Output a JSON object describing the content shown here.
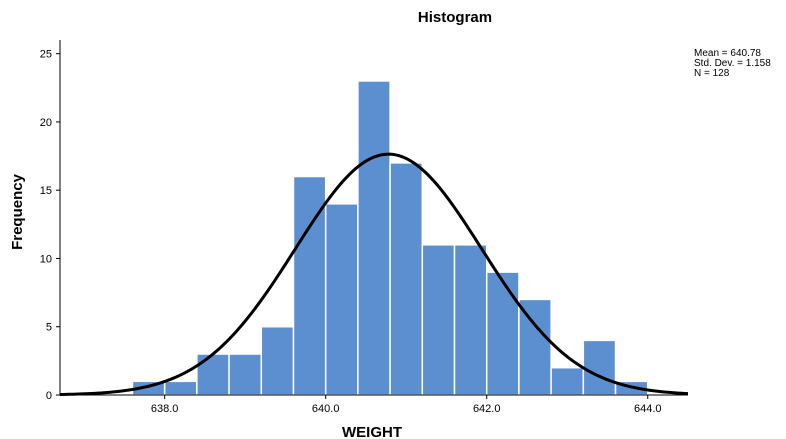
{
  "chart_data": {
    "type": "bar",
    "subtype": "histogram",
    "title": "Histogram",
    "xlabel": "WEIGHT",
    "ylabel": "Frequency",
    "xlim": [
      636.7,
      644.5
    ],
    "ylim": [
      0,
      26
    ],
    "bin_width": 0.4,
    "bins": [
      {
        "start": 637.6,
        "end": 638.0,
        "count": 1
      },
      {
        "start": 638.0,
        "end": 638.4,
        "count": 1
      },
      {
        "start": 638.4,
        "end": 638.8,
        "count": 3
      },
      {
        "start": 638.8,
        "end": 639.2,
        "count": 3
      },
      {
        "start": 639.2,
        "end": 639.6,
        "count": 5
      },
      {
        "start": 639.6,
        "end": 640.0,
        "count": 16
      },
      {
        "start": 640.0,
        "end": 640.4,
        "count": 14
      },
      {
        "start": 640.4,
        "end": 640.8,
        "count": 23
      },
      {
        "start": 640.8,
        "end": 641.2,
        "count": 17
      },
      {
        "start": 641.2,
        "end": 641.6,
        "count": 11
      },
      {
        "start": 641.6,
        "end": 642.0,
        "count": 11
      },
      {
        "start": 642.0,
        "end": 642.4,
        "count": 9
      },
      {
        "start": 642.4,
        "end": 642.8,
        "count": 7
      },
      {
        "start": 642.8,
        "end": 643.2,
        "count": 2
      },
      {
        "start": 643.2,
        "end": 643.6,
        "count": 4
      },
      {
        "start": 643.6,
        "end": 644.0,
        "count": 1
      }
    ],
    "x_ticks": [
      638.0,
      640.0,
      642.0,
      644.0
    ],
    "x_tick_labels": [
      "638.0",
      "640.0",
      "642.0",
      "644.0"
    ],
    "y_ticks": [
      0,
      5,
      10,
      15,
      20,
      25
    ],
    "y_tick_labels": [
      "0",
      "5",
      "10",
      "15",
      "20",
      "25"
    ],
    "normal_curve": {
      "mean": 640.78,
      "std_dev": 1.158,
      "n": 128
    },
    "stats_labels": [
      "Mean = 640.78",
      "Std. Dev. = 1.158",
      "N = 128"
    ],
    "grid": false,
    "legend": "top-right",
    "colors": {
      "bar_fill": "#5b8fcf",
      "bar_stroke": "#ffffff",
      "curve": "#000000",
      "axis": "#000000"
    }
  }
}
